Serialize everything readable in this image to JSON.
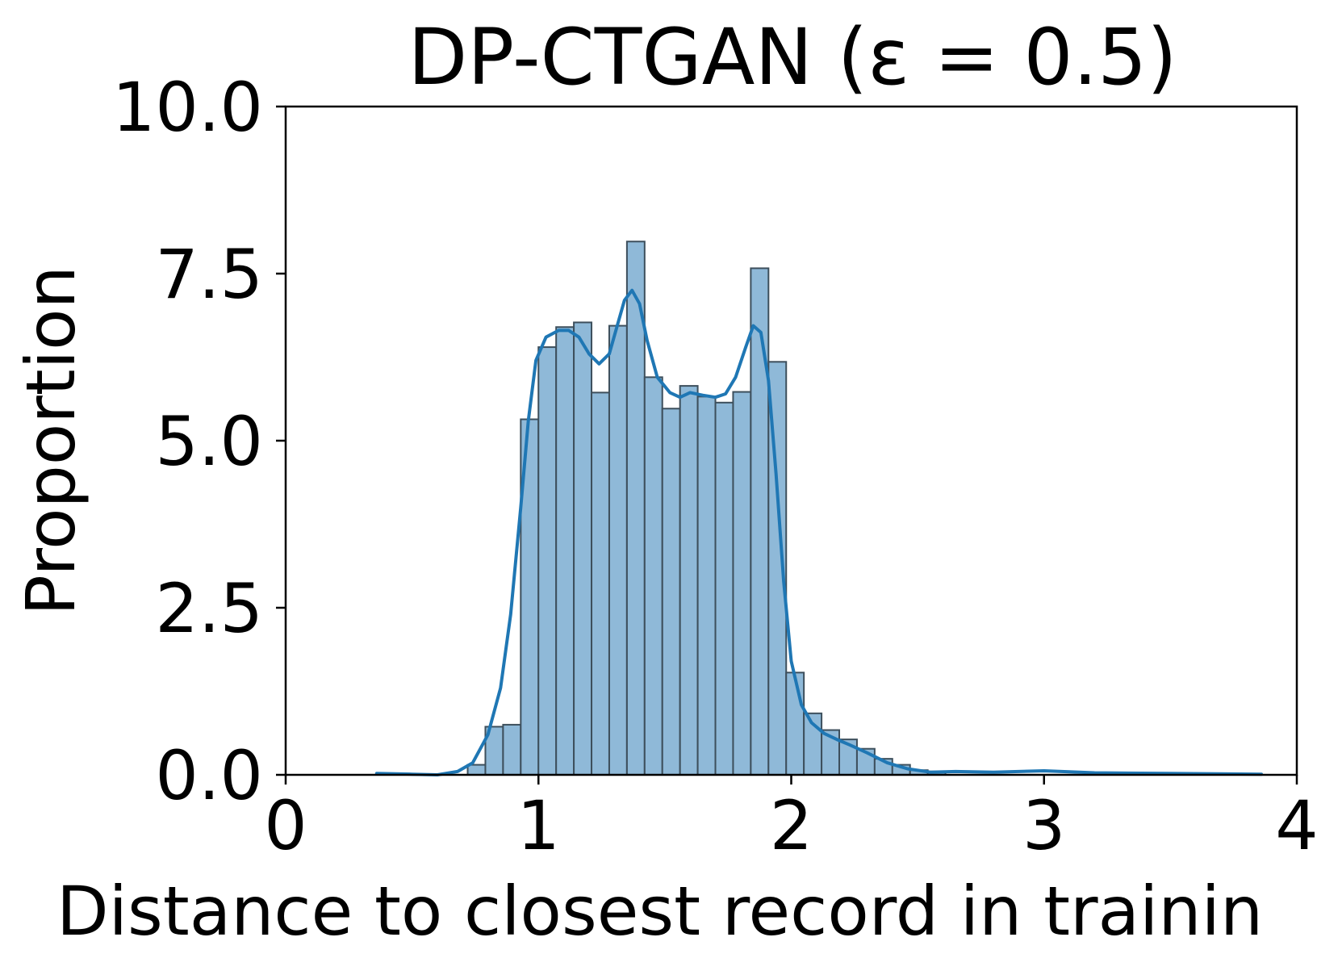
{
  "chart_data": {
    "type": "histogram",
    "title": "DP-CTGAN (ε = 0.5)",
    "xlabel": "Distance to closest record in trainin",
    "ylabel": "Proportion",
    "xlim": [
      0,
      4
    ],
    "ylim": [
      0,
      10
    ],
    "xticks": [
      {
        "value": 0,
        "label": "0"
      },
      {
        "value": 1,
        "label": "1"
      },
      {
        "value": 2,
        "label": "2"
      },
      {
        "value": 3,
        "label": "3"
      },
      {
        "value": 4,
        "label": "4"
      }
    ],
    "yticks": [
      {
        "value": 0,
        "label": "0.0"
      },
      {
        "value": 2.5,
        "label": "2.5"
      },
      {
        "value": 5,
        "label": "5.0"
      },
      {
        "value": 7.5,
        "label": "7.5"
      },
      {
        "value": 10,
        "label": "10.0"
      }
    ],
    "grid": false,
    "colors": {
      "bar_fill": "#8fb9d8",
      "bar_edge": "#3d4f5c",
      "kde_line": "#1f77b4"
    },
    "bins": [
      {
        "x0": 0.72,
        "x1": 0.79,
        "value": 0.15
      },
      {
        "x0": 0.79,
        "x1": 0.86,
        "value": 0.72
      },
      {
        "x0": 0.86,
        "x1": 0.93,
        "value": 0.75
      },
      {
        "x0": 0.93,
        "x1": 1.0,
        "value": 5.32
      },
      {
        "x0": 1.0,
        "x1": 1.07,
        "value": 6.4
      },
      {
        "x0": 1.07,
        "x1": 1.14,
        "value": 6.7
      },
      {
        "x0": 1.14,
        "x1": 1.21,
        "value": 6.77
      },
      {
        "x0": 1.21,
        "x1": 1.28,
        "value": 5.72
      },
      {
        "x0": 1.28,
        "x1": 1.35,
        "value": 6.72
      },
      {
        "x0": 1.35,
        "x1": 1.42,
        "value": 7.98
      },
      {
        "x0": 1.42,
        "x1": 1.49,
        "value": 5.95
      },
      {
        "x0": 1.49,
        "x1": 1.56,
        "value": 5.48
      },
      {
        "x0": 1.56,
        "x1": 1.63,
        "value": 5.82
      },
      {
        "x0": 1.63,
        "x1": 1.7,
        "value": 5.66
      },
      {
        "x0": 1.7,
        "x1": 1.77,
        "value": 5.57
      },
      {
        "x0": 1.77,
        "x1": 1.84,
        "value": 5.73
      },
      {
        "x0": 1.84,
        "x1": 1.91,
        "value": 7.58
      },
      {
        "x0": 1.91,
        "x1": 1.98,
        "value": 6.18
      },
      {
        "x0": 1.98,
        "x1": 2.05,
        "value": 1.53
      },
      {
        "x0": 2.05,
        "x1": 2.12,
        "value": 0.92
      },
      {
        "x0": 2.12,
        "x1": 2.19,
        "value": 0.67
      },
      {
        "x0": 2.19,
        "x1": 2.26,
        "value": 0.53
      },
      {
        "x0": 2.26,
        "x1": 2.33,
        "value": 0.39
      },
      {
        "x0": 2.33,
        "x1": 2.4,
        "value": 0.24
      },
      {
        "x0": 2.4,
        "x1": 2.47,
        "value": 0.15
      },
      {
        "x0": 2.47,
        "x1": 2.54,
        "value": 0.07
      },
      {
        "x0": 2.54,
        "x1": 2.61,
        "value": 0.05
      }
    ],
    "kde": {
      "x": [
        0.36,
        0.5,
        0.6,
        0.68,
        0.74,
        0.8,
        0.85,
        0.89,
        0.93,
        0.96,
        0.99,
        1.03,
        1.08,
        1.12,
        1.16,
        1.2,
        1.24,
        1.28,
        1.31,
        1.34,
        1.37,
        1.4,
        1.43,
        1.47,
        1.52,
        1.56,
        1.6,
        1.65,
        1.7,
        1.74,
        1.78,
        1.82,
        1.85,
        1.88,
        1.91,
        1.94,
        1.97,
        2.0,
        2.04,
        2.08,
        2.13,
        2.18,
        2.23,
        2.3,
        2.38,
        2.46,
        2.55,
        2.65,
        2.8,
        3.0,
        3.2,
        3.5,
        3.86
      ],
      "y": [
        0.02,
        0.01,
        0.0,
        0.05,
        0.18,
        0.6,
        1.3,
        2.4,
        4.0,
        5.3,
        6.2,
        6.55,
        6.65,
        6.65,
        6.55,
        6.3,
        6.15,
        6.3,
        6.7,
        7.1,
        7.25,
        7.05,
        6.5,
        5.95,
        5.72,
        5.65,
        5.72,
        5.68,
        5.65,
        5.7,
        5.95,
        6.4,
        6.72,
        6.62,
        5.9,
        4.5,
        2.9,
        1.7,
        1.05,
        0.78,
        0.62,
        0.53,
        0.45,
        0.33,
        0.18,
        0.09,
        0.04,
        0.05,
        0.04,
        0.06,
        0.03,
        0.02,
        0.01
      ]
    }
  }
}
